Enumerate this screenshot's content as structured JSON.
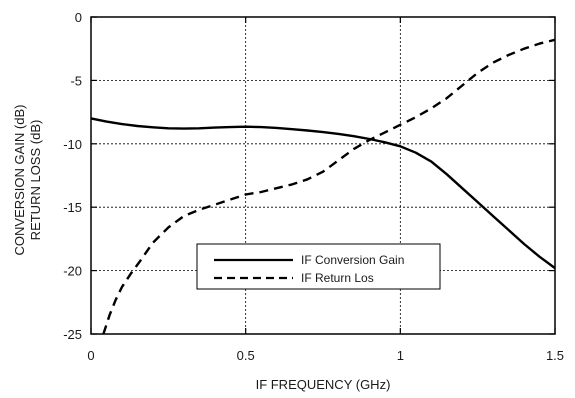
{
  "chart_data": {
    "type": "line",
    "title": "",
    "xlabel": "IF FREQUENCY (GHz)",
    "ylabel_lines": [
      "CONVERSION GAIN (dB)",
      "RETURN LOSS (dB)"
    ],
    "xlim": [
      0,
      1.5
    ],
    "ylim": [
      -25,
      0
    ],
    "x_ticks": [
      0,
      0.5,
      1,
      1.5
    ],
    "x_tick_labels": [
      "0",
      "0.5",
      "1",
      "1.5"
    ],
    "y_ticks": [
      0,
      -5,
      -10,
      -15,
      -20,
      -25
    ],
    "y_tick_labels": [
      "0",
      "-5",
      "-10",
      "-15",
      "-20",
      "-25"
    ],
    "grid": true,
    "legend_position": "lower-center",
    "series": [
      {
        "name": "IF Conversion Gain",
        "style": "solid",
        "color": "#000000",
        "x": [
          0,
          0.05,
          0.1,
          0.15,
          0.2,
          0.25,
          0.3,
          0.35,
          0.4,
          0.45,
          0.5,
          0.55,
          0.6,
          0.65,
          0.7,
          0.75,
          0.8,
          0.85,
          0.9,
          0.95,
          1.0,
          1.05,
          1.1,
          1.15,
          1.2,
          1.25,
          1.3,
          1.35,
          1.4,
          1.45,
          1.5
        ],
        "y": [
          -8.0,
          -8.25,
          -8.45,
          -8.6,
          -8.7,
          -8.78,
          -8.8,
          -8.78,
          -8.72,
          -8.68,
          -8.65,
          -8.68,
          -8.75,
          -8.85,
          -8.95,
          -9.08,
          -9.22,
          -9.4,
          -9.62,
          -9.88,
          -10.2,
          -10.7,
          -11.4,
          -12.4,
          -13.5,
          -14.6,
          -15.7,
          -16.8,
          -17.9,
          -18.9,
          -19.8
        ]
      },
      {
        "name": "IF Return Los",
        "style": "dashed",
        "color": "#000000",
        "x": [
          0.04,
          0.06,
          0.08,
          0.1,
          0.13,
          0.16,
          0.2,
          0.25,
          0.3,
          0.35,
          0.4,
          0.45,
          0.5,
          0.55,
          0.6,
          0.65,
          0.7,
          0.75,
          0.8,
          0.85,
          0.9,
          0.95,
          1.0,
          1.05,
          1.1,
          1.15,
          1.2,
          1.25,
          1.3,
          1.35,
          1.4,
          1.45,
          1.5
        ],
        "y": [
          -25.0,
          -23.5,
          -22.3,
          -21.3,
          -20.2,
          -19.2,
          -17.8,
          -16.6,
          -15.7,
          -15.2,
          -14.8,
          -14.4,
          -14.0,
          -13.8,
          -13.5,
          -13.2,
          -12.8,
          -12.2,
          -11.3,
          -10.4,
          -9.7,
          -9.1,
          -8.5,
          -7.9,
          -7.2,
          -6.4,
          -5.4,
          -4.4,
          -3.6,
          -3.0,
          -2.5,
          -2.1,
          -1.8
        ]
      }
    ]
  }
}
